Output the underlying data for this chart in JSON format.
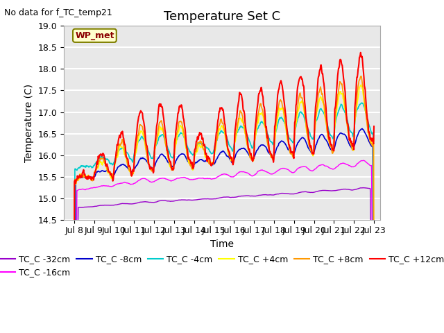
{
  "title": "Temperature Set C",
  "subtitle": "No data for f_TC_temp21",
  "xlabel": "Time",
  "ylabel": "Temperature (C)",
  "ylim": [
    14.5,
    19.0
  ],
  "xlim": [
    7.5,
    23.3
  ],
  "xtick_labels": [
    "Jul 8",
    "Jul 9",
    "Jul 10",
    "Jul 11",
    "Jul 12",
    "Jul 13",
    "Jul 14",
    "Jul 15",
    "Jul 16",
    "Jul 17",
    "Jul 18",
    "Jul 19",
    "Jul 20",
    "Jul 21",
    "Jul 22",
    "Jul 23"
  ],
  "xtick_positions": [
    8,
    9,
    10,
    11,
    12,
    13,
    14,
    15,
    16,
    17,
    18,
    19,
    20,
    21,
    22,
    23
  ],
  "series": [
    {
      "label": "TC_C -32cm",
      "color": "#9900cc",
      "lw": 1.0
    },
    {
      "label": "TC_C -16cm",
      "color": "#ff00ff",
      "lw": 1.0
    },
    {
      "label": "TC_C -8cm",
      "color": "#0000cc",
      "lw": 1.2
    },
    {
      "label": "TC_C -4cm",
      "color": "#00cccc",
      "lw": 1.2
    },
    {
      "label": "TC_C +4cm",
      "color": "#ffff00",
      "lw": 1.2
    },
    {
      "label": "TC_C +8cm",
      "color": "#ff9900",
      "lw": 1.2
    },
    {
      "label": "TC_C +12cm",
      "color": "#ff0000",
      "lw": 1.5
    }
  ],
  "legend_ncol_row1": 6,
  "legend_ncol_row2": 1,
  "wp_met_label": "WP_met",
  "bg_color": "#e8e8e8",
  "grid_color": "#ffffff",
  "title_fontsize": 13,
  "label_fontsize": 10,
  "tick_fontsize": 9,
  "legend_fontsize": 9
}
